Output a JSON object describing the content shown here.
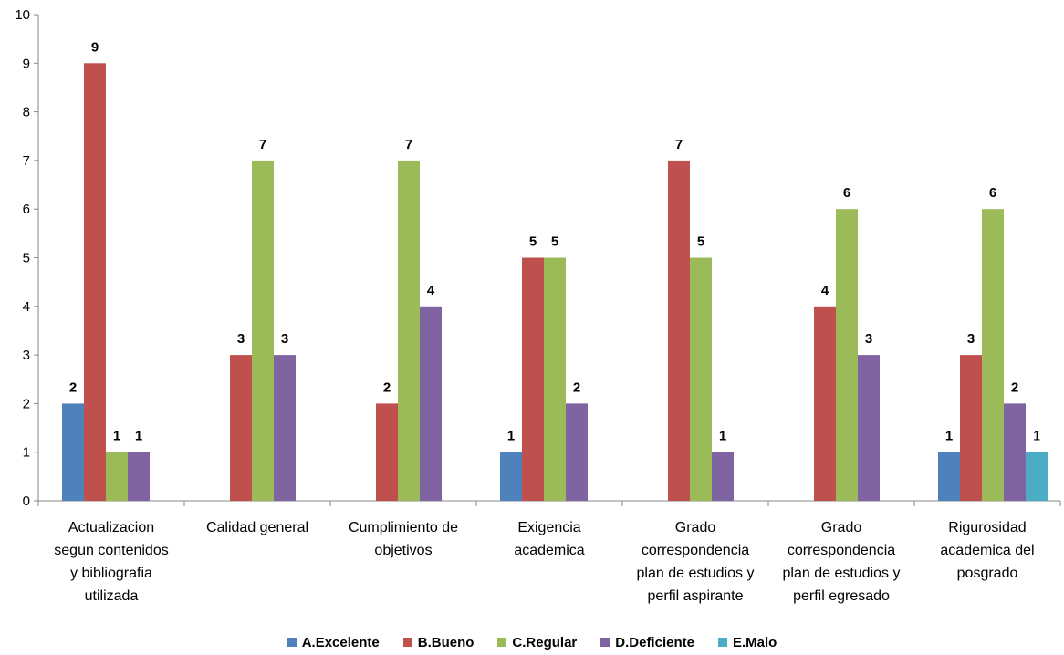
{
  "chart_data": {
    "type": "bar",
    "title": "",
    "xlabel": "",
    "ylabel": "",
    "ylim": [
      0,
      10
    ],
    "yticks": [
      "0",
      "1",
      "2",
      "3",
      "4",
      "5",
      "6",
      "7",
      "8",
      "9",
      "10"
    ],
    "grid": false,
    "legend_position": "bottom",
    "categories": [
      [
        "Actualizacion",
        "segun contenidos",
        "y bibliografia",
        "utilizada"
      ],
      [
        "Calidad general"
      ],
      [
        "Cumplimiento de",
        "objetivos"
      ],
      [
        "Exigencia",
        "academica"
      ],
      [
        "Grado",
        "correspondencia",
        "plan de estudios y",
        "perfil aspirante"
      ],
      [
        "Grado",
        "correspondencia",
        "plan de estudios y",
        "perfil egresado"
      ],
      [
        "Rigurosidad",
        "academica del",
        "posgrado"
      ]
    ],
    "series": [
      {
        "name": "A.Excelente",
        "color": "#4F81BD",
        "values": [
          2,
          null,
          null,
          1,
          null,
          null,
          1
        ]
      },
      {
        "name": "B.Bueno",
        "color": "#C0504D",
        "values": [
          9,
          3,
          2,
          5,
          7,
          4,
          3
        ]
      },
      {
        "name": "C.Regular",
        "color": "#9BBB59",
        "values": [
          1,
          7,
          7,
          5,
          5,
          6,
          6
        ]
      },
      {
        "name": "D.Deficiente",
        "color": "#8064A2",
        "values": [
          1,
          3,
          4,
          2,
          1,
          3,
          2
        ]
      },
      {
        "name": "E.Malo",
        "color": "#4BACC6",
        "values": [
          null,
          null,
          null,
          null,
          null,
          null,
          1
        ]
      }
    ]
  }
}
